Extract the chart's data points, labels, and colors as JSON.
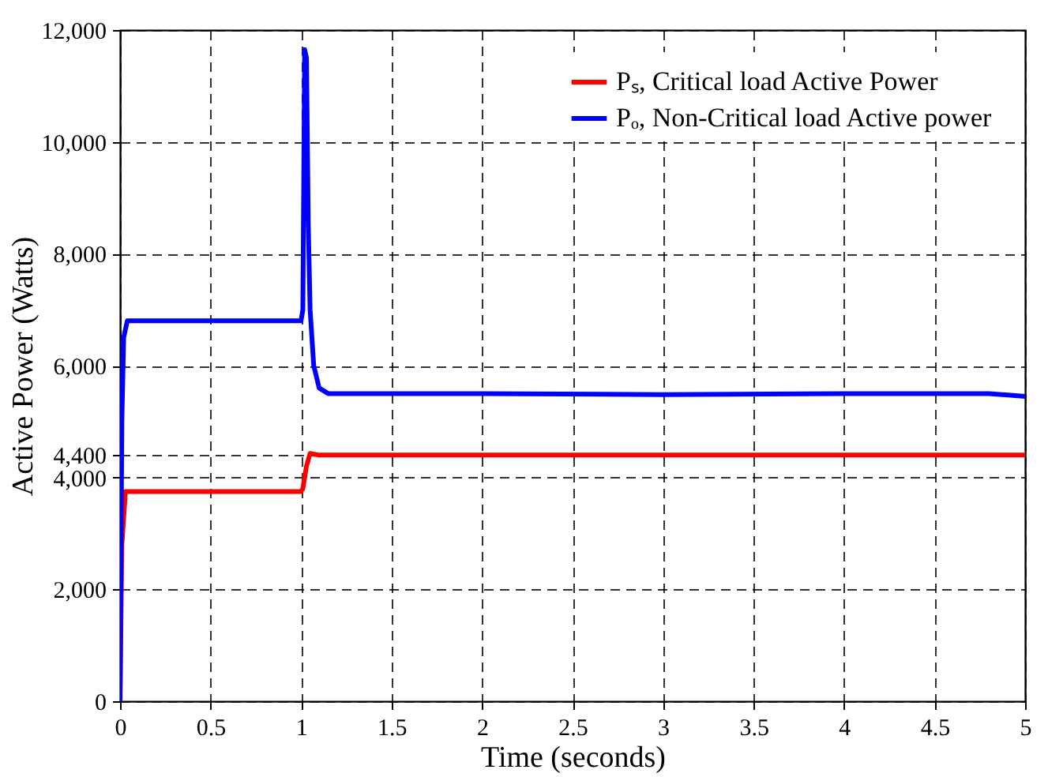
{
  "chart_data": {
    "type": "line",
    "xlabel": "Time (seconds)",
    "ylabel": "Active Power (Watts)",
    "xlim": [
      0,
      5
    ],
    "xticks": [
      0,
      0.5,
      1,
      1.5,
      2,
      2.5,
      3,
      3.5,
      4,
      4.5,
      5
    ],
    "ylim": [
      0,
      12000
    ],
    "yticks": [
      0,
      {
        "value": 2000,
        "label": "2,000"
      },
      {
        "value": 4000,
        "label": "4,000"
      },
      {
        "value": 4400,
        "label": "4,400"
      },
      {
        "value": 6000,
        "label": "6,000"
      },
      {
        "value": 8000,
        "label": "8,000"
      },
      {
        "value": 10000,
        "label": "10,000"
      },
      {
        "value": 12000,
        "label": "12,000"
      }
    ],
    "grid": true,
    "legend": "top right",
    "series": [
      {
        "name": "Pₛ, Critical load Active Power",
        "color": "#ff0000",
        "x": [
          0,
          0.01,
          0.03,
          0.5,
          1.0,
          1.01,
          1.03,
          1.05,
          1.1,
          2,
          3,
          4,
          5
        ],
        "values": [
          0,
          2800,
          3750,
          3750,
          3750,
          3800,
          4200,
          4430,
          4400,
          4400,
          4400,
          4400,
          4400
        ]
      },
      {
        "name": "Pₒ, Non-Critical load Active power",
        "color": "#0000ff",
        "x": [
          0,
          0.01,
          0.02,
          0.04,
          0.5,
          1.0,
          1.01,
          1.02,
          1.03,
          1.04,
          1.05,
          1.07,
          1.1,
          1.15,
          2,
          3,
          4,
          4.8,
          5
        ],
        "values": [
          0,
          5000,
          6500,
          6800,
          6800,
          6800,
          7000,
          11650,
          11500,
          8500,
          7000,
          6000,
          5600,
          5500,
          5500,
          5480,
          5500,
          5500,
          5450
        ]
      }
    ]
  }
}
